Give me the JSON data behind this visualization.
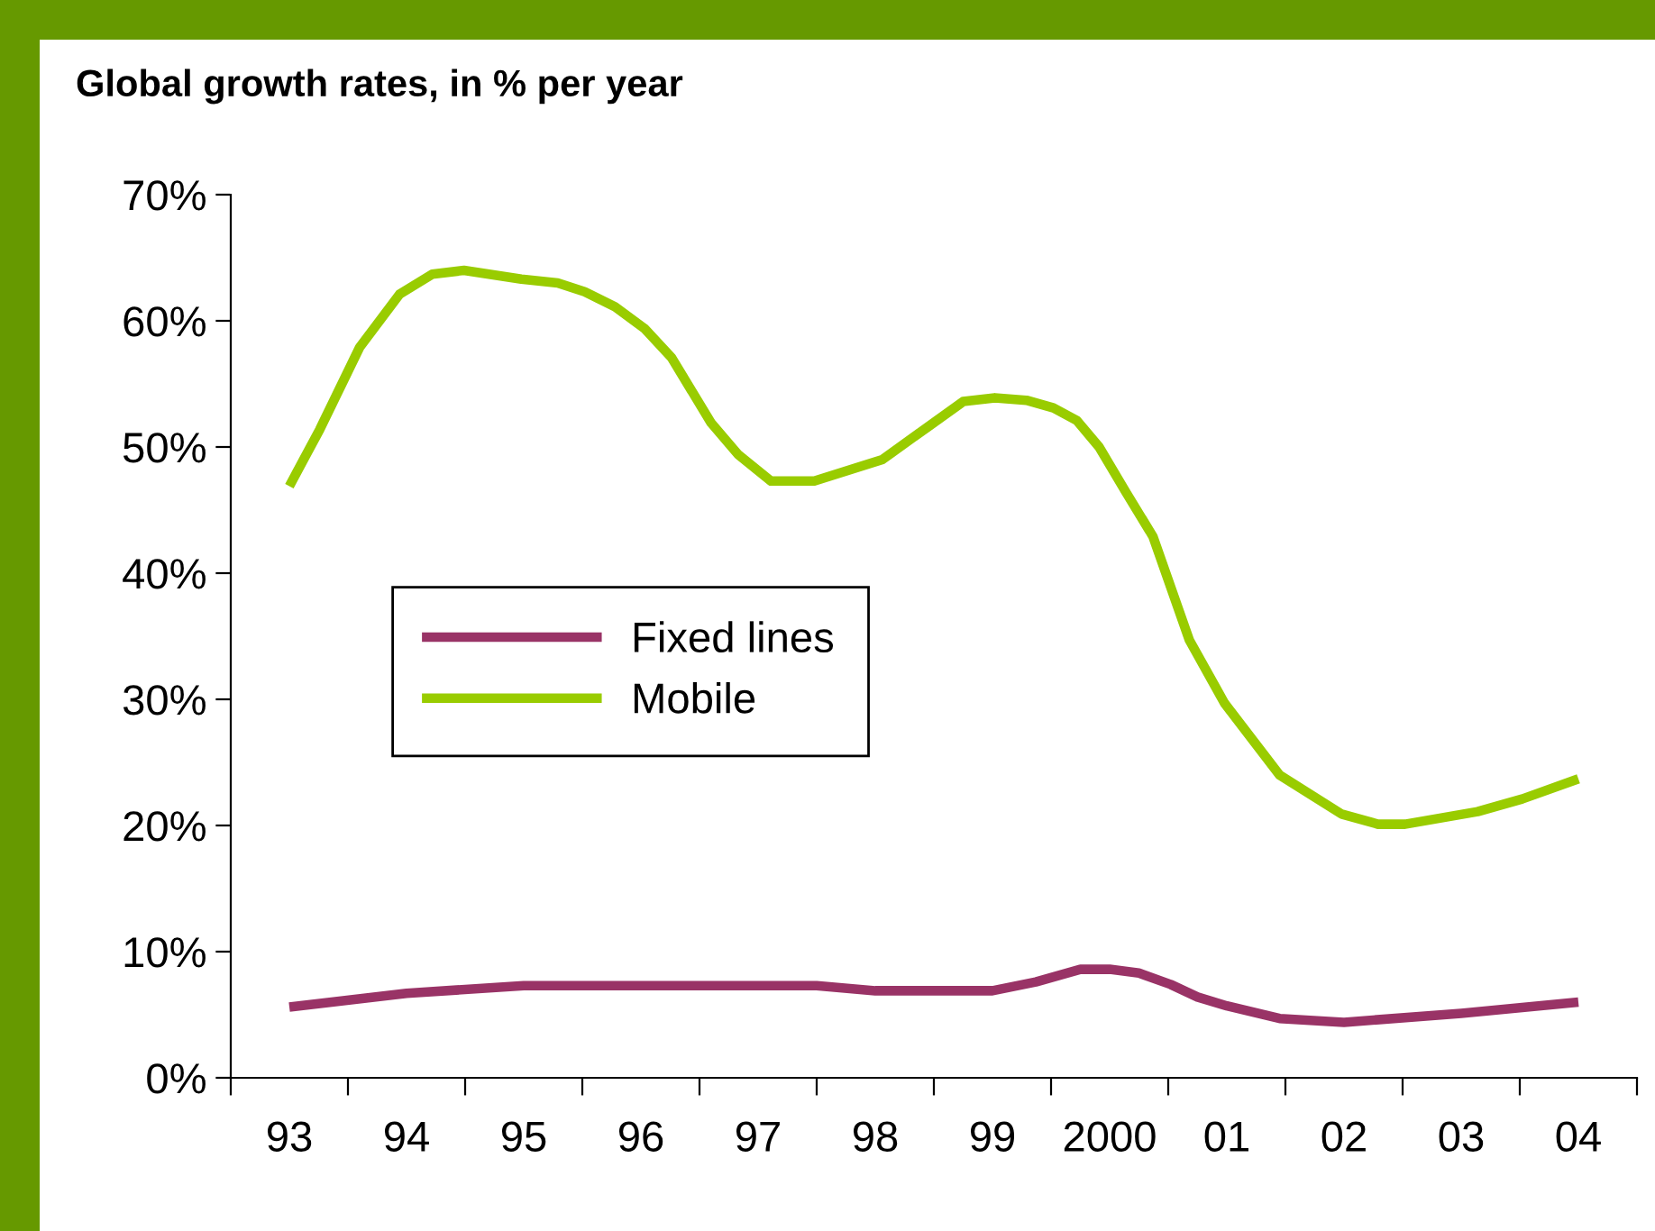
{
  "chart_data": {
    "type": "line",
    "title": "Global growth rates, in % per year",
    "xlim": [
      1992.5,
      2004.5
    ],
    "xticks": [
      {
        "value": 1992.5,
        "label": null
      },
      {
        "value": 1993,
        "label": "93"
      },
      {
        "value": 1993.5,
        "label": null
      },
      {
        "value": 1994,
        "label": "94"
      },
      {
        "value": 1994.5,
        "label": null
      },
      {
        "value": 1995,
        "label": "95"
      },
      {
        "value": 1995.5,
        "label": null
      },
      {
        "value": 1996,
        "label": "96"
      },
      {
        "value": 1996.5,
        "label": null
      },
      {
        "value": 1997,
        "label": "97"
      },
      {
        "value": 1997.5,
        "label": null
      },
      {
        "value": 1998,
        "label": "98"
      },
      {
        "value": 1998.5,
        "label": null
      },
      {
        "value": 1999,
        "label": "99"
      },
      {
        "value": 1999.5,
        "label": null
      },
      {
        "value": 2000,
        "label": "2000"
      },
      {
        "value": 2000.5,
        "label": null
      },
      {
        "value": 2001,
        "label": "01"
      },
      {
        "value": 2001.5,
        "label": null
      },
      {
        "value": 2002,
        "label": "02"
      },
      {
        "value": 2002.5,
        "label": null
      },
      {
        "value": 2003,
        "label": "03"
      },
      {
        "value": 2003.5,
        "label": null
      },
      {
        "value": 2004,
        "label": "04"
      },
      {
        "value": 2004.5,
        "label": null
      }
    ],
    "ylim": [
      0,
      70
    ],
    "yticks": [
      {
        "value": 0,
        "label": "0%"
      },
      {
        "value": 10,
        "label": "10%"
      },
      {
        "value": 20,
        "label": "20%"
      },
      {
        "value": 30,
        "label": "30%"
      },
      {
        "value": 40,
        "label": "40%"
      },
      {
        "value": 50,
        "label": "50%"
      },
      {
        "value": 60,
        "label": "60%"
      },
      {
        "value": 70,
        "label": "70%"
      }
    ],
    "grid": false,
    "legend": "center left",
    "marker": "none",
    "line_style": "solid",
    "series": [
      {
        "name": "Fixed lines",
        "color": "#993366",
        "x": [
          1993,
          1994,
          1995,
          1996,
          1997,
          1997.5,
          1998,
          1999,
          1999.37,
          1999.75,
          2000,
          2000.25,
          2000.52,
          2000.75,
          2001,
          2001.45,
          2002,
          2003,
          2004
        ],
        "values": [
          5.6,
          6.7,
          7.3,
          7.3,
          7.3,
          7.3,
          6.9,
          6.9,
          7.6,
          8.6,
          8.6,
          8.3,
          7.4,
          6.4,
          5.7,
          4.7,
          4.4,
          5.1,
          6.0
        ]
      },
      {
        "name": "Mobile",
        "color": "#99cc00",
        "x": [
          1993,
          1993.26,
          1993.6,
          1993.94,
          1994.22,
          1994.49,
          1994.98,
          1995.29,
          1995.52,
          1995.78,
          1996.03,
          1996.26,
          1996.6,
          1996.83,
          1997.11,
          1997.48,
          1998.06,
          1998.45,
          1998.75,
          1999.02,
          1999.29,
          1999.52,
          1999.72,
          1999.91,
          2000.14,
          2000.37,
          2000.68,
          2000.98,
          2001.45,
          2001.98,
          2002.29,
          2002.52,
          2003.14,
          2003.52,
          2004
        ],
        "values": [
          46.9,
          51.4,
          57.9,
          62.1,
          63.7,
          64,
          63.3,
          63,
          62.3,
          61.1,
          59.4,
          57.1,
          51.9,
          49.4,
          47.3,
          47.3,
          49,
          51.6,
          53.6,
          53.9,
          53.7,
          53.1,
          52.1,
          50,
          46.4,
          42.9,
          34.7,
          29.7,
          24,
          20.9,
          20.1,
          20.1,
          21.1,
          22.1,
          23.7
        ]
      }
    ]
  }
}
